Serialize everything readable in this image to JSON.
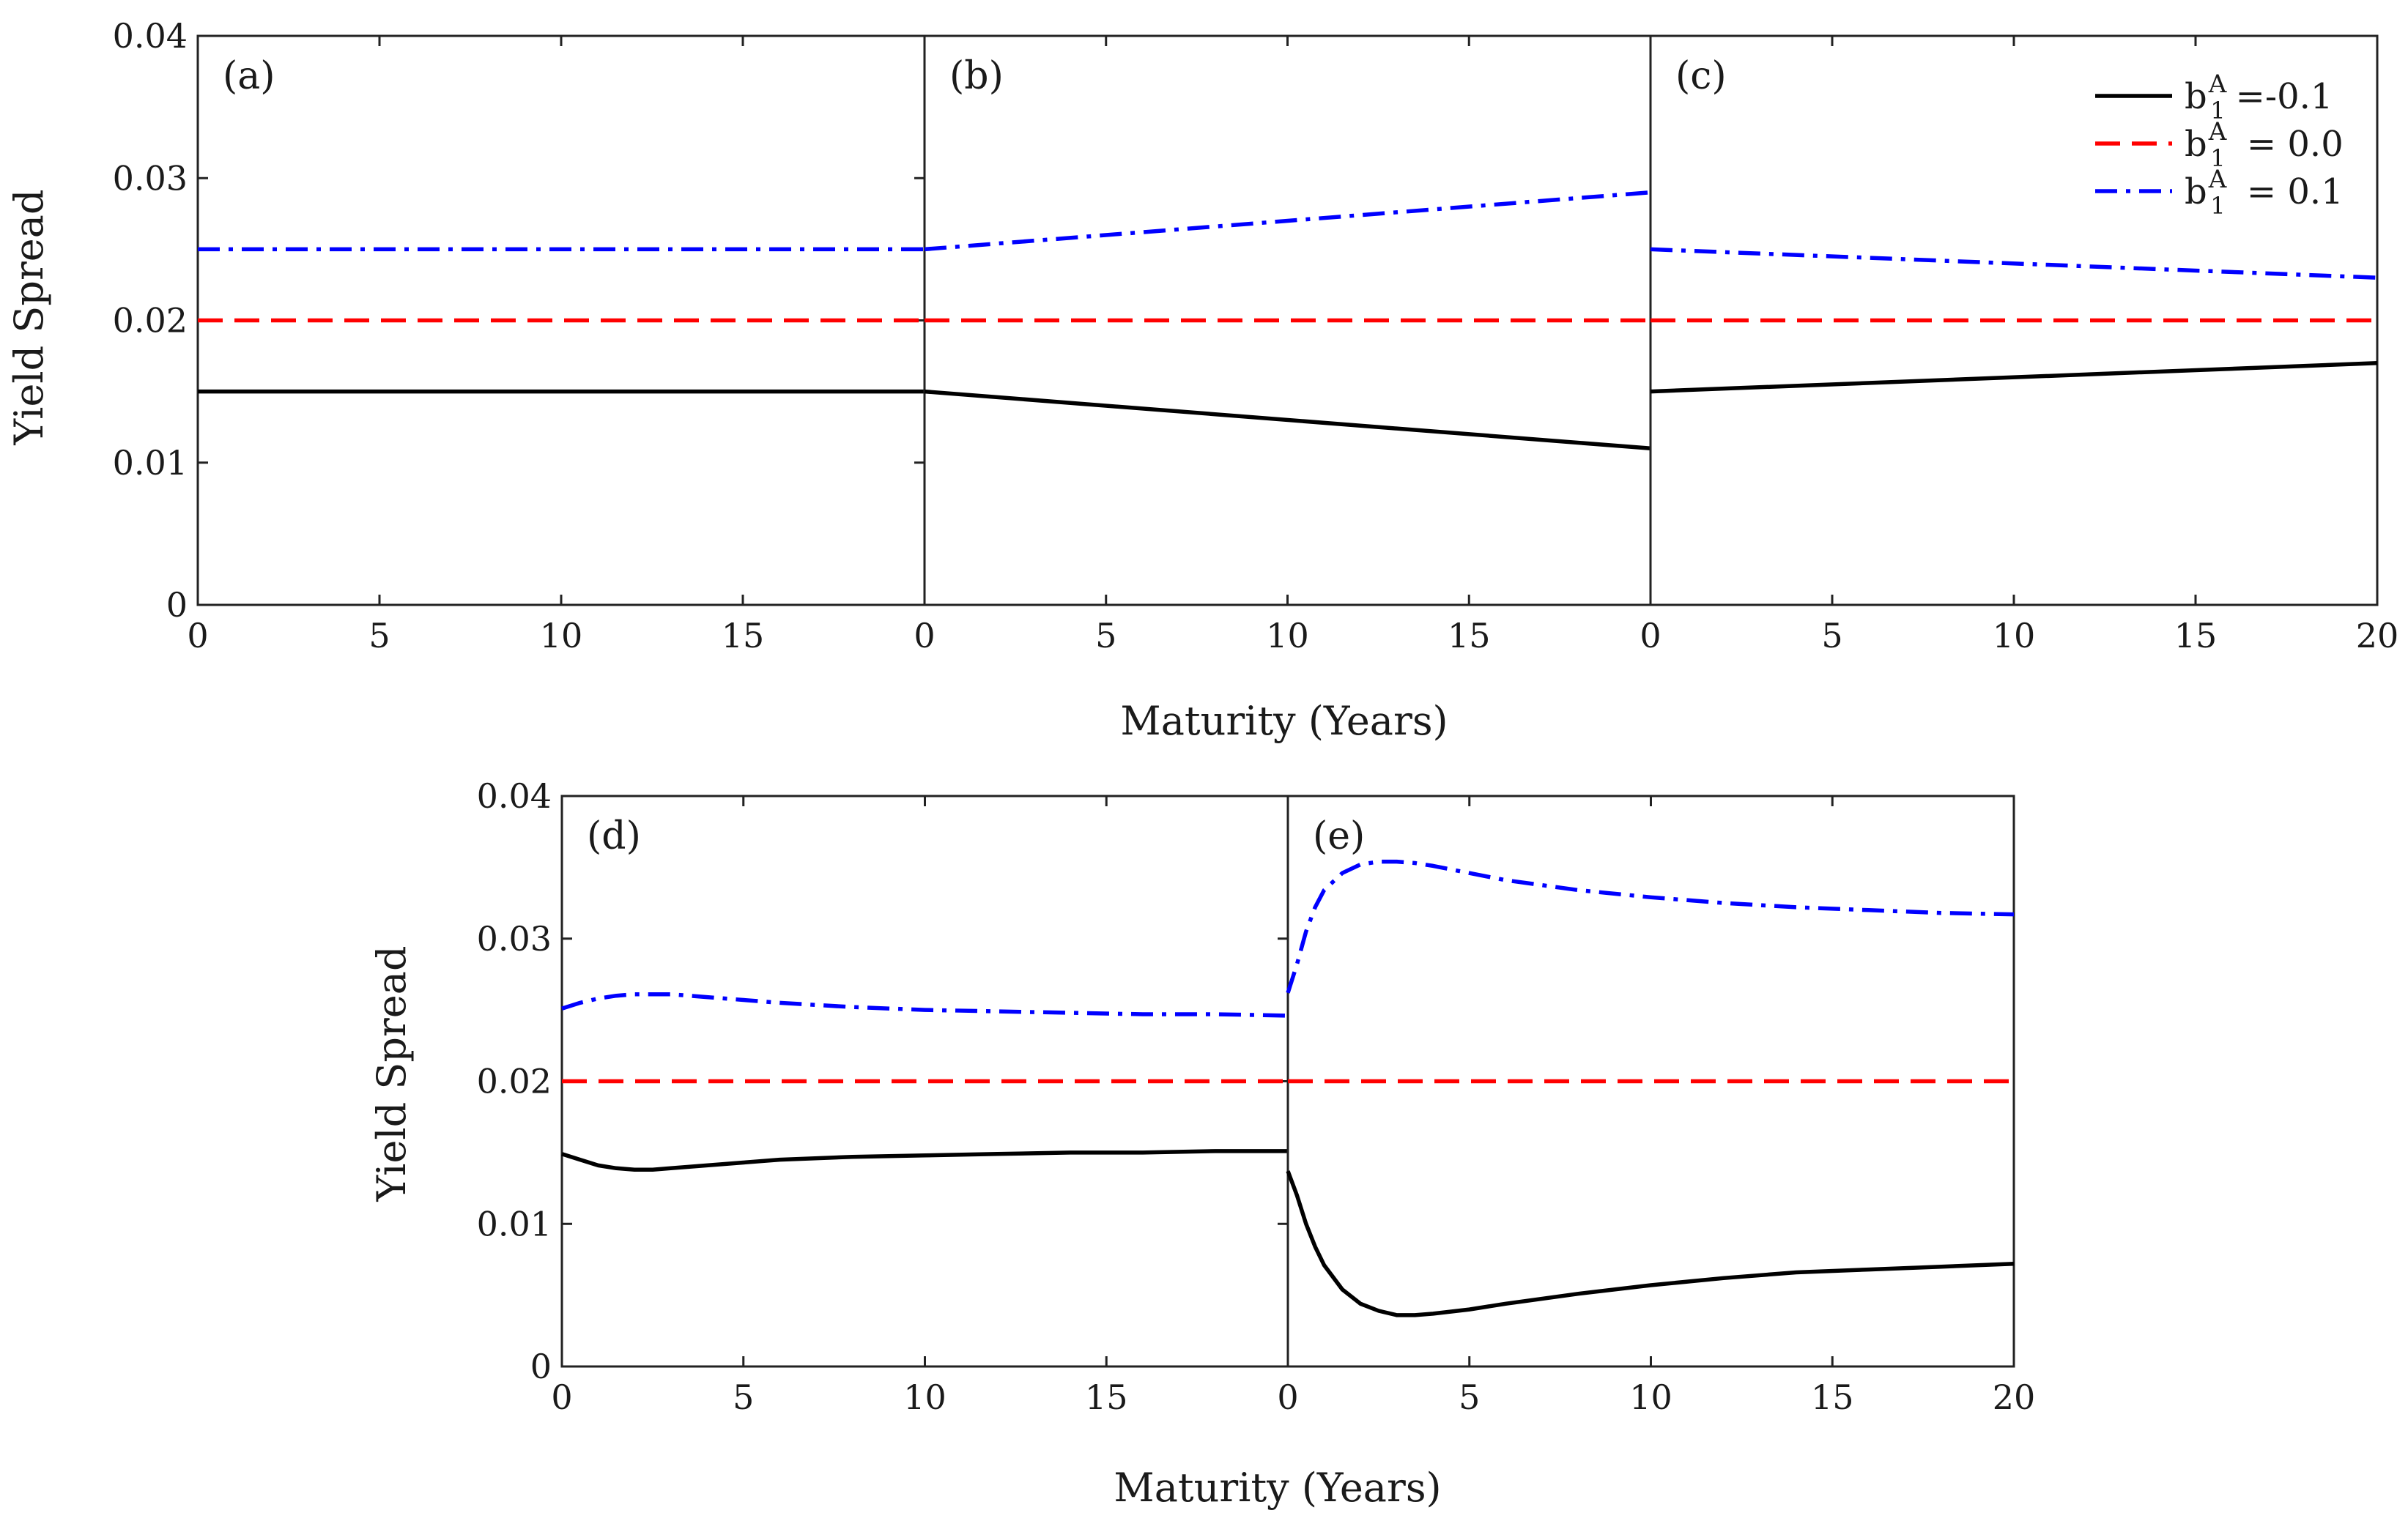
{
  "figure": {
    "top_row": {
      "ylabel": "Yield Spread",
      "xlabel": "Maturity (Years)"
    },
    "bottom_row": {
      "ylabel": "Yield Spread",
      "xlabel": "Maturity (Years)"
    },
    "legend": {
      "placement": "top-right of panel (c)",
      "entries": [
        {
          "base": "b",
          "sub": "1",
          "sup": "A",
          "value_text": "=-0.1",
          "color": "#000000",
          "style": "solid"
        },
        {
          "base": "b",
          "sub": "1",
          "sup": "A",
          "value_text": " = 0.0",
          "color": "#ff0000",
          "style": "dashed"
        },
        {
          "base": "b",
          "sub": "1",
          "sup": "A",
          "value_text": " = 0.1",
          "color": "#0000ff",
          "style": "dash-dot"
        }
      ]
    }
  },
  "chart_data": [
    {
      "type": "line",
      "panel_label": "(a)",
      "xlim": [
        0,
        20
      ],
      "ylim": [
        0,
        0.04
      ],
      "xticks": [
        "0",
        "5",
        "10",
        "15"
      ],
      "yticks": [
        "0",
        "0.01",
        "0.02",
        "0.03",
        "0.04"
      ],
      "series": [
        {
          "color": "#000000",
          "style": "solid",
          "x": [
            0,
            20
          ],
          "y": [
            0.015,
            0.015
          ]
        },
        {
          "color": "#ff0000",
          "style": "dashed",
          "x": [
            0,
            20
          ],
          "y": [
            0.02,
            0.02
          ]
        },
        {
          "color": "#0000ff",
          "style": "dash-dot",
          "x": [
            0,
            20
          ],
          "y": [
            0.025,
            0.025
          ]
        }
      ]
    },
    {
      "type": "line",
      "panel_label": "(b)",
      "xlim": [
        0,
        20
      ],
      "ylim": [
        0,
        0.04
      ],
      "xticks": [
        "0",
        "5",
        "10",
        "15"
      ],
      "yticks": [],
      "series": [
        {
          "color": "#000000",
          "style": "solid",
          "x": [
            0,
            20
          ],
          "y": [
            0.015,
            0.011
          ]
        },
        {
          "color": "#ff0000",
          "style": "dashed",
          "x": [
            0,
            20
          ],
          "y": [
            0.02,
            0.02
          ]
        },
        {
          "color": "#0000ff",
          "style": "dash-dot",
          "x": [
            0,
            20
          ],
          "y": [
            0.025,
            0.029
          ]
        }
      ]
    },
    {
      "type": "line",
      "panel_label": "(c)",
      "xlim": [
        0,
        20
      ],
      "ylim": [
        0,
        0.04
      ],
      "xticks": [
        "0",
        "5",
        "10",
        "15",
        "20"
      ],
      "yticks": [],
      "series": [
        {
          "color": "#000000",
          "style": "solid",
          "x": [
            0,
            20
          ],
          "y": [
            0.015,
            0.017
          ]
        },
        {
          "color": "#ff0000",
          "style": "dashed",
          "x": [
            0,
            20
          ],
          "y": [
            0.02,
            0.02
          ]
        },
        {
          "color": "#0000ff",
          "style": "dash-dot",
          "x": [
            0,
            20
          ],
          "y": [
            0.025,
            0.023
          ]
        }
      ]
    },
    {
      "type": "line",
      "panel_label": "(d)",
      "xlim": [
        0,
        20
      ],
      "ylim": [
        0,
        0.04
      ],
      "xticks": [
        "0",
        "5",
        "10",
        "15"
      ],
      "yticks": [
        "0",
        "0.01",
        "0.02",
        "0.03",
        "0.04"
      ],
      "series": [
        {
          "color": "#000000",
          "style": "solid",
          "x": [
            0,
            0.5,
            1,
            1.5,
            2,
            2.5,
            3,
            4,
            5,
            6,
            8,
            10,
            12,
            14,
            16,
            18,
            20
          ],
          "y": [
            0.0149,
            0.0145,
            0.0141,
            0.0139,
            0.0138,
            0.0138,
            0.0139,
            0.0141,
            0.0143,
            0.0145,
            0.0147,
            0.0148,
            0.0149,
            0.015,
            0.015,
            0.0151,
            0.0151
          ]
        },
        {
          "color": "#ff0000",
          "style": "dashed",
          "x": [
            0,
            20
          ],
          "y": [
            0.02,
            0.02
          ]
        },
        {
          "color": "#0000ff",
          "style": "dash-dot",
          "x": [
            0,
            0.5,
            1,
            1.5,
            2,
            2.5,
            3,
            4,
            5,
            6,
            8,
            10,
            12,
            14,
            16,
            18,
            20
          ],
          "y": [
            0.0251,
            0.0255,
            0.0258,
            0.026,
            0.0261,
            0.0261,
            0.0261,
            0.0259,
            0.0257,
            0.0255,
            0.0252,
            0.025,
            0.0249,
            0.0248,
            0.0247,
            0.0247,
            0.0246
          ]
        }
      ]
    },
    {
      "type": "line",
      "panel_label": "(e)",
      "xlim": [
        0,
        20
      ],
      "ylim": [
        0,
        0.04
      ],
      "xticks": [
        "0",
        "5",
        "10",
        "15",
        "20"
      ],
      "yticks": [],
      "series": [
        {
          "color": "#000000",
          "style": "solid",
          "x": [
            0,
            0.25,
            0.5,
            0.75,
            1,
            1.5,
            2,
            2.5,
            3,
            3.5,
            4,
            5,
            6,
            8,
            10,
            12,
            14,
            16,
            18,
            20
          ],
          "y": [
            0.0137,
            0.012,
            0.01,
            0.0084,
            0.0071,
            0.0054,
            0.0044,
            0.0039,
            0.0036,
            0.0036,
            0.0037,
            0.004,
            0.0044,
            0.0051,
            0.0057,
            0.0062,
            0.0066,
            0.0068,
            0.007,
            0.0072
          ]
        },
        {
          "color": "#ff0000",
          "style": "dashed",
          "x": [
            0,
            20
          ],
          "y": [
            0.02,
            0.02
          ]
        },
        {
          "color": "#0000ff",
          "style": "dash-dot",
          "x": [
            0,
            0.25,
            0.5,
            0.75,
            1,
            1.5,
            2,
            2.5,
            3,
            3.5,
            4,
            5,
            6,
            8,
            10,
            12,
            14,
            16,
            18,
            20
          ],
          "y": [
            0.0262,
            0.0282,
            0.0305,
            0.0322,
            0.0334,
            0.0346,
            0.0352,
            0.0354,
            0.0354,
            0.0353,
            0.0351,
            0.0346,
            0.0341,
            0.0334,
            0.0329,
            0.0325,
            0.0322,
            0.032,
            0.0318,
            0.0317
          ]
        }
      ]
    }
  ]
}
